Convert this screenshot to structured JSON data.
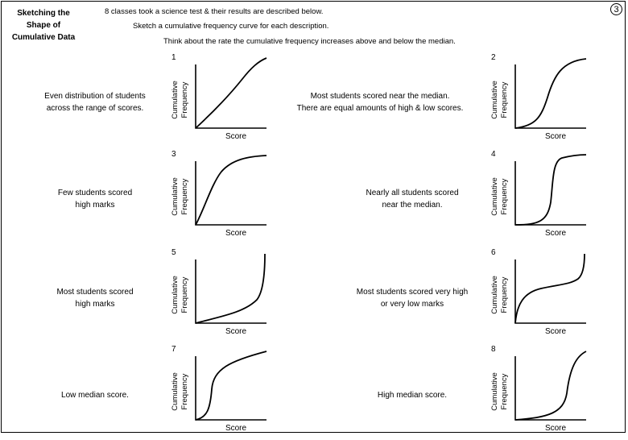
{
  "title": [
    "Sketching the",
    "Shape of",
    "Cumulative Data"
  ],
  "page_number": "3",
  "instructions": [
    "8 classes took a science test & their results are described below.",
    "Sketch a cumulative frequency curve for each description.",
    "Think about the rate the cumulative frequency increases above and below the median."
  ],
  "axis": {
    "ylabel_line1": "Cumulative",
    "ylabel_line2": "Frequency",
    "xlabel": "Score"
  },
  "panels": [
    {
      "number": "1",
      "description": [
        "Even distribution of students",
        "across the range of scores."
      ],
      "shape": "even"
    },
    {
      "number": "2",
      "description": [
        "Most students scored near the median.",
        "There are equal amounts of high & low scores."
      ],
      "shape": "s-curve"
    },
    {
      "number": "3",
      "description": [
        "Few students scored",
        "high marks"
      ],
      "shape": "concave"
    },
    {
      "number": "4",
      "description": [
        "Nearly all students scored",
        "near the median."
      ],
      "shape": "steep-s-curve"
    },
    {
      "number": "5",
      "description": [
        "Most students scored",
        "high marks"
      ],
      "shape": "convex"
    },
    {
      "number": "6",
      "description": [
        "Most students scored very high",
        "or very low marks"
      ],
      "shape": "inverse-s-curve"
    },
    {
      "number": "7",
      "description": [
        "Low median score."
      ],
      "shape": "s-curve-left"
    },
    {
      "number": "8",
      "description": [
        "High median score."
      ],
      "shape": "s-curve-right"
    }
  ]
}
